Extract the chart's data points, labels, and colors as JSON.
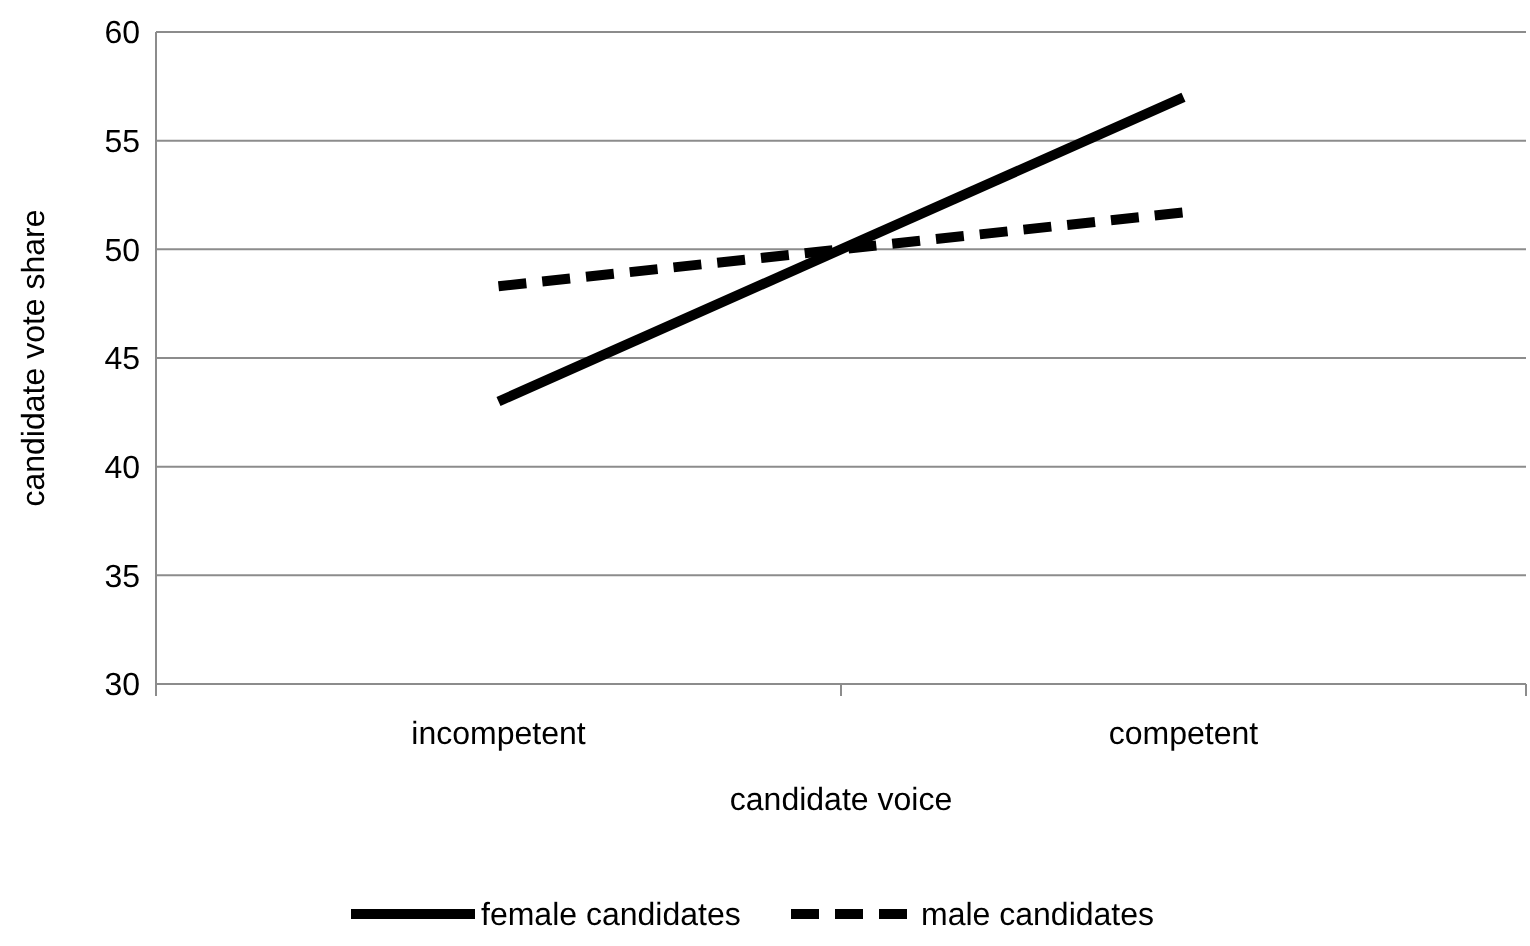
{
  "chart_data": {
    "type": "line",
    "xlabel": "candidate voice",
    "ylabel": "candidate vote share",
    "categories": [
      "incompetent",
      "competent"
    ],
    "series": [
      {
        "name": "female candidates",
        "color": "#000000",
        "values": [
          43,
          57
        ],
        "line_style": "solid"
      },
      {
        "name": "male candidates",
        "color": "#000000",
        "values": [
          48.3,
          51.7
        ],
        "line_style": "dashed"
      }
    ],
    "ylim": [
      30,
      60
    ],
    "yticks": [
      30,
      35,
      40,
      45,
      50,
      55,
      60
    ],
    "grid": "y",
    "legend": "bottom",
    "marker": "none"
  }
}
